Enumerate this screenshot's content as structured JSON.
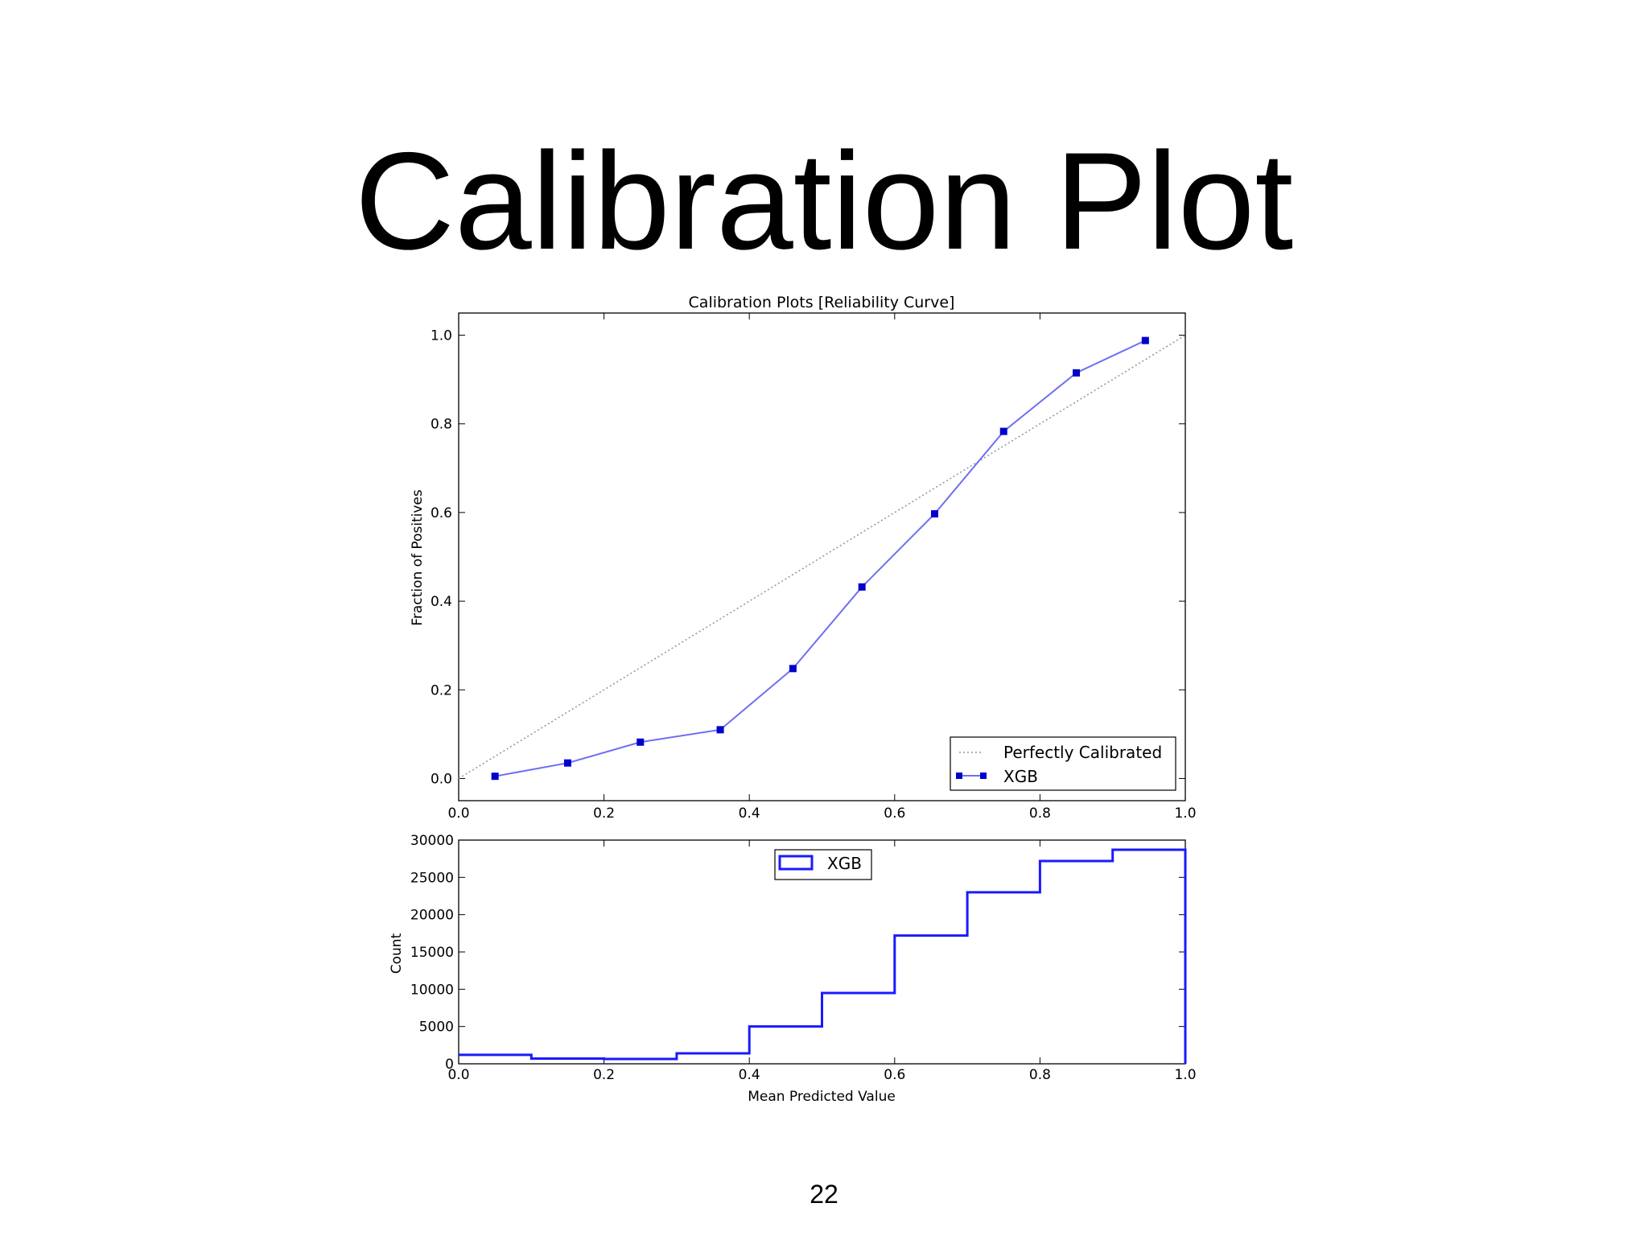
{
  "slide": {
    "title": "Calibration Plot",
    "page_number": "22"
  },
  "colors": {
    "curve": "#6f6ff2",
    "marker": "#0000cc",
    "hist": "#1a1aff",
    "diagonal": "#999999"
  },
  "chart_data": [
    {
      "type": "line",
      "title": "Calibration Plots [Reliability Curve]",
      "xlabel": "",
      "ylabel": "Fraction of Positives",
      "xlim": [
        0.0,
        1.0
      ],
      "ylim": [
        -0.05,
        1.05
      ],
      "xticks": [
        "0.0",
        "0.2",
        "0.4",
        "0.6",
        "0.8",
        "1.0"
      ],
      "yticks": [
        "0.0",
        "0.2",
        "0.4",
        "0.6",
        "0.8",
        "1.0"
      ],
      "grid": false,
      "legend_position": "lower-right",
      "series": [
        {
          "name": "Perfectly Calibrated",
          "style": "dotted",
          "x": [
            0.0,
            1.0
          ],
          "y": [
            0.0,
            1.0
          ]
        },
        {
          "name": "XGB",
          "style": "line-square-markers",
          "x": [
            0.05,
            0.15,
            0.25,
            0.36,
            0.46,
            0.555,
            0.655,
            0.75,
            0.85,
            0.945
          ],
          "y": [
            0.005,
            0.035,
            0.082,
            0.11,
            0.248,
            0.432,
            0.597,
            0.783,
            0.915,
            0.988
          ]
        }
      ]
    },
    {
      "type": "histogram",
      "title": "",
      "xlabel": "Mean Predicted Value",
      "ylabel": "Count",
      "xlim": [
        0.0,
        1.0
      ],
      "ylim": [
        0,
        30000
      ],
      "xticks": [
        "0.0",
        "0.2",
        "0.4",
        "0.6",
        "0.8",
        "1.0"
      ],
      "yticks": [
        "0",
        "5000",
        "10000",
        "15000",
        "20000",
        "25000",
        "30000"
      ],
      "grid": false,
      "legend_position": "upper-center",
      "series": [
        {
          "name": "XGB",
          "style": "step",
          "bin_edges": [
            0.0,
            0.1,
            0.2,
            0.3,
            0.4,
            0.5,
            0.6,
            0.7,
            0.8,
            0.9,
            1.0
          ],
          "counts": [
            1200,
            700,
            650,
            1400,
            5000,
            9500,
            17200,
            23000,
            27200,
            28700
          ]
        }
      ]
    }
  ]
}
